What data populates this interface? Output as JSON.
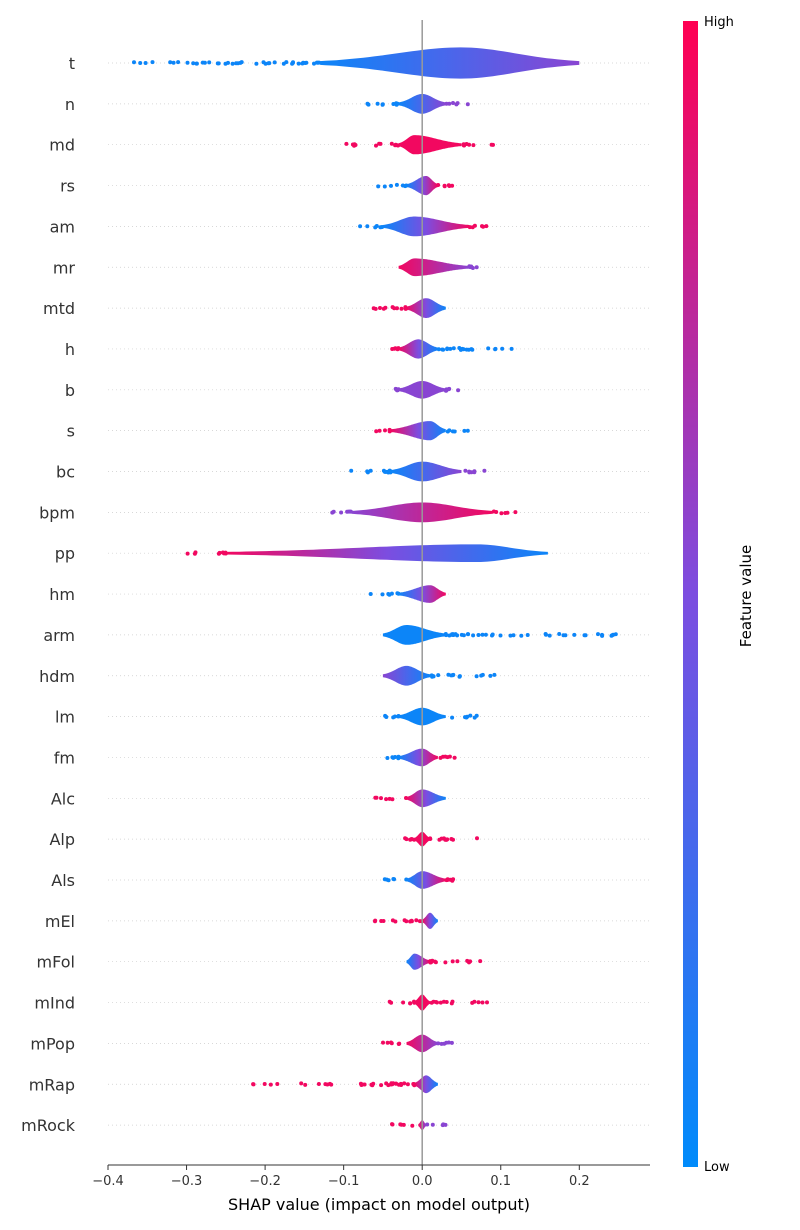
{
  "chart_data": {
    "type": "violin",
    "xlabel": "SHAP value (impact on model output)",
    "xlim": [
      -0.4,
      0.29
    ],
    "xticks": [
      -0.4,
      -0.3,
      -0.2,
      -0.1,
      0.0,
      0.1,
      0.2
    ],
    "xtick_labels": [
      "−0.4",
      "−0.3",
      "−0.2",
      "−0.1",
      "0.0",
      "0.1",
      "0.2"
    ],
    "colorbar": {
      "title": "Feature value",
      "high_label": "High",
      "low_label": "Low",
      "high_color": "#ff0052",
      "mid_color": "#7c4de0",
      "low_color": "#008bfb"
    },
    "zero_line": 0.0,
    "features": [
      {
        "name": "t",
        "min": -0.37,
        "max": 0.2,
        "body": [
          -0.13,
          0.2
        ],
        "center": 0.05,
        "width": 1.0,
        "left_vals": "low",
        "right_vals": "mid"
      },
      {
        "name": "n",
        "min": -0.08,
        "max": 0.06,
        "body": [
          -0.03,
          0.03
        ],
        "center": 0.0,
        "width": 0.62,
        "left_vals": "low",
        "right_vals": "mid"
      },
      {
        "name": "md",
        "min": -0.1,
        "max": 0.1,
        "body": [
          -0.03,
          0.05
        ],
        "center": -0.01,
        "width": 0.6,
        "left_vals": "high",
        "right_vals": "high"
      },
      {
        "name": "rs",
        "min": -0.06,
        "max": 0.04,
        "body": [
          -0.02,
          0.02
        ],
        "center": 0.005,
        "width": 0.6,
        "left_vals": "low",
        "right_vals": "high"
      },
      {
        "name": "am",
        "min": -0.08,
        "max": 0.09,
        "body": [
          -0.05,
          0.06
        ],
        "center": -0.01,
        "width": 0.62,
        "left_vals": "low",
        "right_vals": "high"
      },
      {
        "name": "mr",
        "min": -0.03,
        "max": 0.07,
        "body": [
          -0.03,
          0.06
        ],
        "center": -0.01,
        "width": 0.55,
        "left_vals": "high",
        "right_vals": "mid"
      },
      {
        "name": "mtd",
        "min": -0.09,
        "max": 0.03,
        "body": [
          -0.02,
          0.03
        ],
        "center": 0.005,
        "width": 0.62,
        "left_vals": "high",
        "right_vals": "low"
      },
      {
        "name": "h",
        "min": -0.04,
        "max": 0.13,
        "body": [
          -0.03,
          0.02
        ],
        "center": -0.005,
        "width": 0.6,
        "left_vals": "high",
        "right_vals": "low"
      },
      {
        "name": "b",
        "min": -0.05,
        "max": 0.05,
        "body": [
          -0.03,
          0.03
        ],
        "center": 0.0,
        "width": 0.55,
        "left_vals": "mid",
        "right_vals": "mid"
      },
      {
        "name": "s",
        "min": -0.06,
        "max": 0.06,
        "body": [
          -0.04,
          0.03
        ],
        "center": 0.01,
        "width": 0.6,
        "left_vals": "high",
        "right_vals": "low"
      },
      {
        "name": "bc",
        "min": -0.11,
        "max": 0.09,
        "body": [
          -0.04,
          0.05
        ],
        "center": 0.0,
        "width": 0.62,
        "left_vals": "low",
        "right_vals": "mid"
      },
      {
        "name": "bpm",
        "min": -0.13,
        "max": 0.12,
        "body": [
          -0.09,
          0.09
        ],
        "center": 0.0,
        "width": 0.62,
        "left_vals": "mid",
        "right_vals": "high"
      },
      {
        "name": "pp",
        "min": -0.3,
        "max": 0.16,
        "body": [
          -0.25,
          0.16
        ],
        "center": 0.07,
        "width": 0.55,
        "left_vals": "high",
        "right_vals": "low"
      },
      {
        "name": "hm",
        "min": -0.07,
        "max": 0.03,
        "body": [
          -0.03,
          0.03
        ],
        "center": 0.01,
        "width": 0.55,
        "left_vals": "low",
        "right_vals": "high"
      },
      {
        "name": "arm",
        "min": -0.05,
        "max": 0.26,
        "body": [
          -0.05,
          0.03
        ],
        "center": -0.02,
        "width": 0.62,
        "left_vals": "low",
        "right_vals": "low"
      },
      {
        "name": "hdm",
        "min": -0.05,
        "max": 0.1,
        "body": [
          -0.05,
          0.01
        ],
        "center": -0.02,
        "width": 0.62,
        "left_vals": "mid",
        "right_vals": "low"
      },
      {
        "name": "lm",
        "min": -0.05,
        "max": 0.07,
        "body": [
          -0.03,
          0.03
        ],
        "center": 0.0,
        "width": 0.55,
        "left_vals": "low",
        "right_vals": "low"
      },
      {
        "name": "fm",
        "min": -0.05,
        "max": 0.05,
        "body": [
          -0.03,
          0.02
        ],
        "center": 0.0,
        "width": 0.55,
        "left_vals": "low",
        "right_vals": "high"
      },
      {
        "name": "Alc",
        "min": -0.06,
        "max": 0.03,
        "body": [
          -0.02,
          0.03
        ],
        "center": 0.0,
        "width": 0.55,
        "left_vals": "high",
        "right_vals": "low"
      },
      {
        "name": "Alp",
        "min": -0.03,
        "max": 0.07,
        "body": [
          -0.01,
          0.01
        ],
        "center": 0.0,
        "width": 0.45,
        "left_vals": "high",
        "right_vals": "high"
      },
      {
        "name": "Als",
        "min": -0.05,
        "max": 0.04,
        "body": [
          -0.02,
          0.03
        ],
        "center": 0.0,
        "width": 0.55,
        "left_vals": "low",
        "right_vals": "high"
      },
      {
        "name": "mEl",
        "min": -0.08,
        "max": 0.02,
        "body": [
          0.0,
          0.02
        ],
        "center": 0.01,
        "width": 0.5,
        "left_vals": "high",
        "right_vals": "low"
      },
      {
        "name": "mFol",
        "min": -0.02,
        "max": 0.08,
        "body": [
          -0.02,
          0.01
        ],
        "center": -0.01,
        "width": 0.5,
        "left_vals": "low",
        "right_vals": "high"
      },
      {
        "name": "mInd",
        "min": -0.05,
        "max": 0.09,
        "body": [
          -0.01,
          0.01
        ],
        "center": 0.0,
        "width": 0.5,
        "left_vals": "high",
        "right_vals": "high"
      },
      {
        "name": "mPop",
        "min": -0.05,
        "max": 0.04,
        "body": [
          -0.02,
          0.02
        ],
        "center": 0.0,
        "width": 0.55,
        "left_vals": "high",
        "right_vals": "mid"
      },
      {
        "name": "mRap",
        "min": -0.22,
        "max": 0.02,
        "body": [
          -0.01,
          0.02
        ],
        "center": 0.005,
        "width": 0.55,
        "left_vals": "high",
        "right_vals": "low"
      },
      {
        "name": "mRock",
        "min": -0.04,
        "max": 0.03,
        "body": [
          -0.005,
          0.005
        ],
        "center": 0.0,
        "width": 0.3,
        "left_vals": "high",
        "right_vals": "mid"
      }
    ]
  }
}
